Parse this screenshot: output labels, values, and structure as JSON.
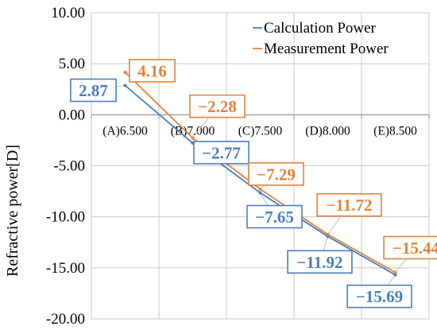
{
  "chart_data": {
    "type": "line",
    "title": "",
    "xlabel": "",
    "ylabel": "Refractive power[D]",
    "ylim": [
      -20,
      10
    ],
    "y_tick_step": 5,
    "y_tick_labels": [
      "10.00",
      "5.00",
      "0.00",
      "-5.00",
      "-10.00",
      "-15.00",
      "-20.00"
    ],
    "categories": [
      "(A)6.500",
      "(B)7.000",
      "(C)7.500",
      "(D)8.000",
      "(E)8.500"
    ],
    "grid": true,
    "legend_position": "top-right",
    "series": [
      {
        "name": "Calculation Power",
        "color": "#4a7ebb",
        "values": [
          2.87,
          -2.77,
          -7.65,
          -11.92,
          -15.69
        ],
        "labels": [
          "2.87",
          "−2.77",
          "−7.65",
          "−11.92",
          "−15.69"
        ]
      },
      {
        "name": "Measurement Power",
        "color": "#e8803a",
        "values": [
          4.16,
          -2.28,
          -7.29,
          -11.72,
          -15.44
        ],
        "labels": [
          "4.16",
          "−2.28",
          "−7.29",
          "−11.72",
          "−15.44"
        ]
      }
    ]
  }
}
